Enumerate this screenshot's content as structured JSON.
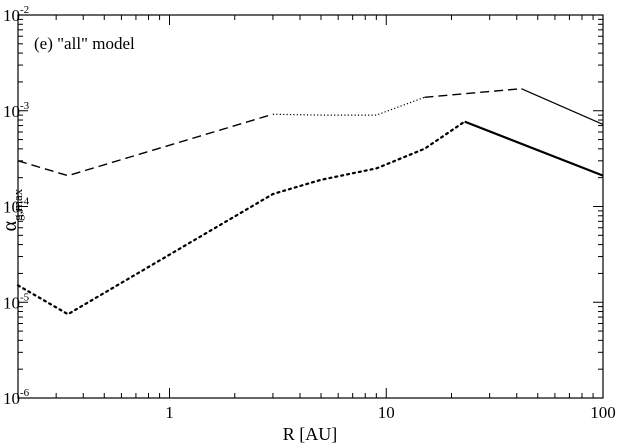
{
  "chart_data": {
    "type": "line",
    "annotation": "(e) \"all\" model",
    "xlabel": "R [AU]",
    "ylabel": {
      "base": "α",
      "subscript": "g,max"
    },
    "xscale": "log",
    "yscale": "log",
    "xlim": [
      0.2,
      100
    ],
    "ylim": [
      1e-06,
      0.01
    ],
    "x_ticks": [
      {
        "value": 1,
        "label": "1"
      },
      {
        "value": 10,
        "label": "10"
      },
      {
        "value": 100,
        "label": "100"
      }
    ],
    "y_ticks": [
      {
        "value": 1e-06,
        "base": "10",
        "exp": "-6"
      },
      {
        "value": 1e-05,
        "base": "10",
        "exp": "-5"
      },
      {
        "value": 0.0001,
        "base": "10",
        "exp": "-4"
      },
      {
        "value": 0.001,
        "base": "10",
        "exp": "-3"
      },
      {
        "value": 0.01,
        "base": "10",
        "exp": "-2"
      }
    ],
    "grid": false,
    "legend": "none",
    "series": [
      {
        "style": "dashed",
        "width": 1.4,
        "points": [
          [
            0.2,
            0.0003
          ],
          [
            0.34,
            0.00021
          ],
          [
            3.0,
            0.00092
          ]
        ]
      },
      {
        "style": "dotted-thin",
        "width": 1.2,
        "points": [
          [
            3.0,
            0.00092
          ],
          [
            5.0,
            0.0009
          ],
          [
            9.0,
            0.0009
          ],
          [
            15.0,
            0.00138
          ]
        ]
      },
      {
        "style": "dashed",
        "width": 1.4,
        "points": [
          [
            15.0,
            0.00138
          ],
          [
            42.0,
            0.0017
          ]
        ]
      },
      {
        "style": "solid",
        "width": 1.2,
        "points": [
          [
            42.0,
            0.0017
          ],
          [
            100.0,
            0.00072
          ]
        ]
      },
      {
        "style": "dotted-bold",
        "width": 2.2,
        "points": [
          [
            0.2,
            1.5e-05
          ],
          [
            0.34,
            7.5e-06
          ],
          [
            3.0,
            0.000135
          ],
          [
            5.0,
            0.00019
          ],
          [
            9.0,
            0.00025
          ],
          [
            15.0,
            0.0004
          ],
          [
            23.0,
            0.00077
          ]
        ]
      },
      {
        "style": "solid-bold",
        "width": 2.2,
        "points": [
          [
            23.0,
            0.00077
          ],
          [
            100.0,
            0.00021
          ]
        ]
      }
    ]
  }
}
